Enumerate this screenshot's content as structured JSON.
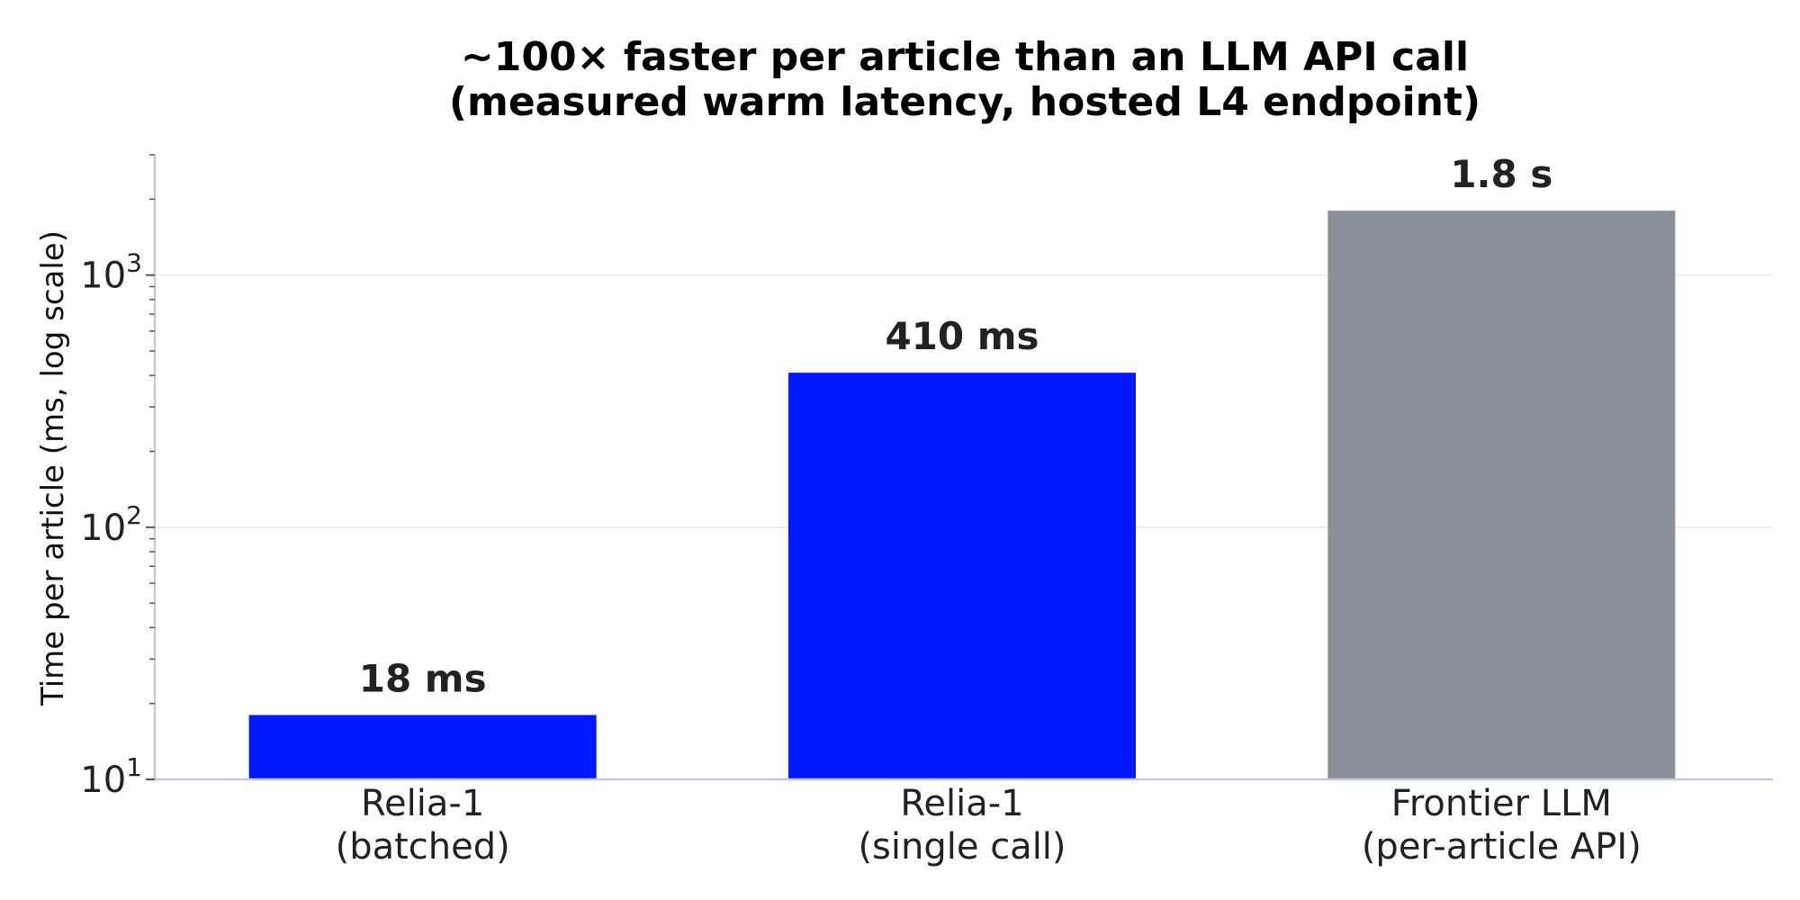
{
  "chart_data": {
    "type": "bar",
    "title": "~100× faster per article than an LLM API call",
    "subtitle": "(measured warm latency, hosted L4 endpoint)",
    "xlabel": "",
    "ylabel": "Time per article (ms, log scale)",
    "yscale": "log",
    "ylim": [
      10,
      3000
    ],
    "grid": "horizontal at major ticks",
    "yticks": [
      {
        "base": "10",
        "exp": "1"
      },
      {
        "base": "10",
        "exp": "2"
      },
      {
        "base": "10",
        "exp": "3"
      }
    ],
    "categories": [
      {
        "line1": "Relia-1",
        "line2": "(batched)"
      },
      {
        "line1": "Relia-1",
        "line2": "(single call)"
      },
      {
        "line1": "Frontier LLM",
        "line2": "(per-article API)"
      }
    ],
    "values": [
      18,
      410,
      1800
    ],
    "data_labels": [
      "18 ms",
      "410 ms",
      "1.8 s"
    ],
    "colors": [
      "#0019ff",
      "#0019ff",
      "#8a9099"
    ],
    "axis_color": "#c5c9d8",
    "grid_color": "#eceef2"
  }
}
